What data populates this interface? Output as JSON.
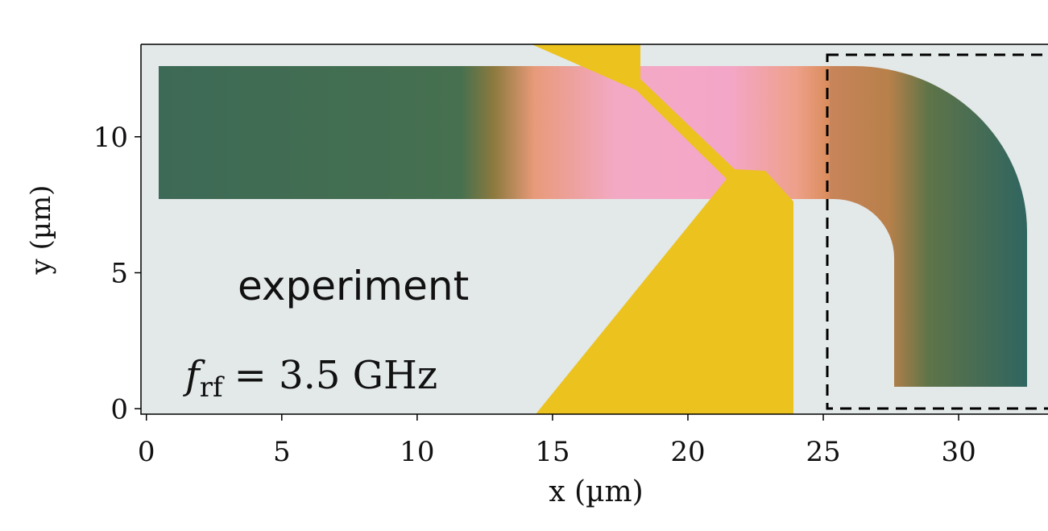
{
  "chart_data": {
    "type": "image",
    "xlabel": "x (µm)",
    "ylabel": "y (µm)",
    "xlim": [
      -0.2,
      33.3
    ],
    "ylim": [
      -0.2,
      13.4
    ],
    "xticks": [
      0,
      5,
      10,
      15,
      20,
      25,
      30
    ],
    "yticks": [
      0,
      5,
      10
    ],
    "annotations": {
      "label": "experiment",
      "frequency": {
        "symbol": "f",
        "subscript": "rf",
        "text": "= 3.5 GHz"
      }
    }
  }
}
